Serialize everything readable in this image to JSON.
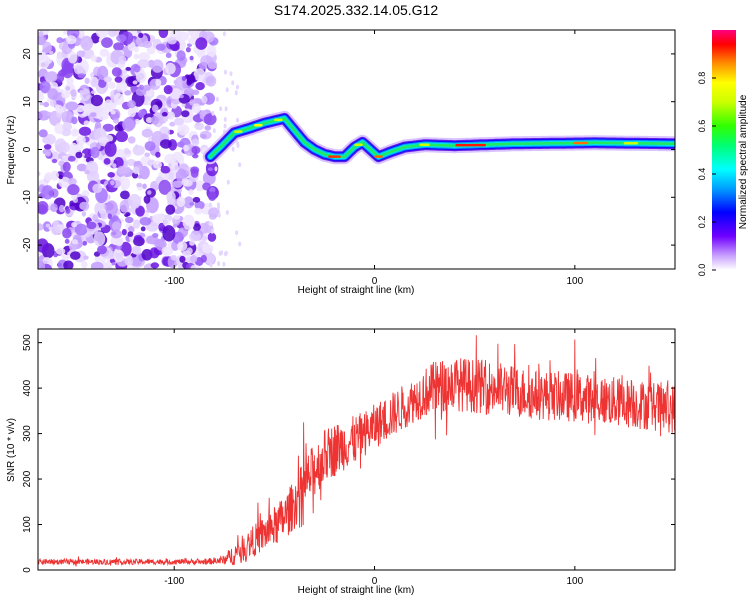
{
  "title": "S174.2025.332.14.05.G12",
  "chart_data": [
    {
      "type": "heatmap",
      "xlabel": "Height of straight line (km)",
      "ylabel": "Frequency (Hz)",
      "xlim": [
        -168,
        150
      ],
      "ylim": [
        -25,
        25
      ],
      "x_ticks": [
        -100,
        0,
        100
      ],
      "x_tick_labels": [
        "-100",
        "0",
        "100"
      ],
      "y_ticks": [
        -20,
        -10,
        0,
        10,
        20
      ],
      "y_tick_labels": [
        "-20",
        "-10",
        "0",
        "10",
        "20"
      ],
      "noise_region_x": [
        -168,
        -82
      ],
      "ridge": {
        "x": [
          -82,
          -77,
          -70,
          -62,
          -55,
          -50,
          -45,
          -40,
          -35,
          -30,
          -25,
          -20,
          -15,
          -10,
          -6,
          -2,
          2,
          8,
          15,
          25,
          40,
          55,
          70,
          90,
          110,
          130,
          150
        ],
        "freq_hz": [
          -1.5,
          0.5,
          3.5,
          4.5,
          5.5,
          6.0,
          6.5,
          4.0,
          1.5,
          0.0,
          -1.0,
          -1.5,
          -1.5,
          0.5,
          1.5,
          0.0,
          -1.5,
          -0.5,
          0.5,
          1.0,
          0.8,
          1.0,
          1.2,
          1.3,
          1.4,
          1.3,
          1.2
        ]
      },
      "colorbar": {
        "label": "Normalized spectral amplitude",
        "range": [
          0.0,
          1.0
        ],
        "ticks": [
          0.0,
          0.2,
          0.4,
          0.6,
          0.8
        ],
        "tick_labels": [
          "0.0",
          "0.2",
          "0.4",
          "0.6",
          "0.8"
        ]
      }
    },
    {
      "type": "line",
      "xlabel": "Height of straight line (km)",
      "ylabel": "SNR (10 * v/v)",
      "xlim": [
        -168,
        150
      ],
      "ylim": [
        0,
        530
      ],
      "x_ticks": [
        -100,
        0,
        100
      ],
      "x_tick_labels": [
        "-100",
        "0",
        "100"
      ],
      "y_ticks": [
        0,
        100,
        200,
        300,
        400,
        500
      ],
      "y_tick_labels": [
        "0",
        "100",
        "200",
        "300",
        "400",
        "500"
      ],
      "series": [
        {
          "name": "SNR",
          "color": "#ee3333",
          "x": [
            -168,
            -140,
            -110,
            -85,
            -75,
            -70,
            -65,
            -60,
            -55,
            -50,
            -45,
            -40,
            -35,
            -30,
            -25,
            -20,
            -15,
            -10,
            -5,
            0,
            5,
            10,
            15,
            20,
            25,
            30,
            40,
            50,
            60,
            80,
            100,
            120,
            140,
            150
          ],
          "mean": [
            18,
            18,
            18,
            18,
            22,
            35,
            50,
            65,
            80,
            95,
            115,
            145,
            185,
            220,
            250,
            265,
            275,
            285,
            300,
            315,
            330,
            345,
            360,
            375,
            390,
            400,
            410,
            405,
            400,
            385,
            380,
            370,
            360,
            355
          ],
          "spread": [
            6,
            6,
            6,
            6,
            10,
            25,
            30,
            35,
            40,
            45,
            50,
            55,
            60,
            60,
            60,
            60,
            55,
            55,
            50,
            50,
            50,
            50,
            50,
            50,
            55,
            60,
            60,
            60,
            60,
            55,
            55,
            55,
            55,
            55
          ]
        }
      ]
    }
  ]
}
